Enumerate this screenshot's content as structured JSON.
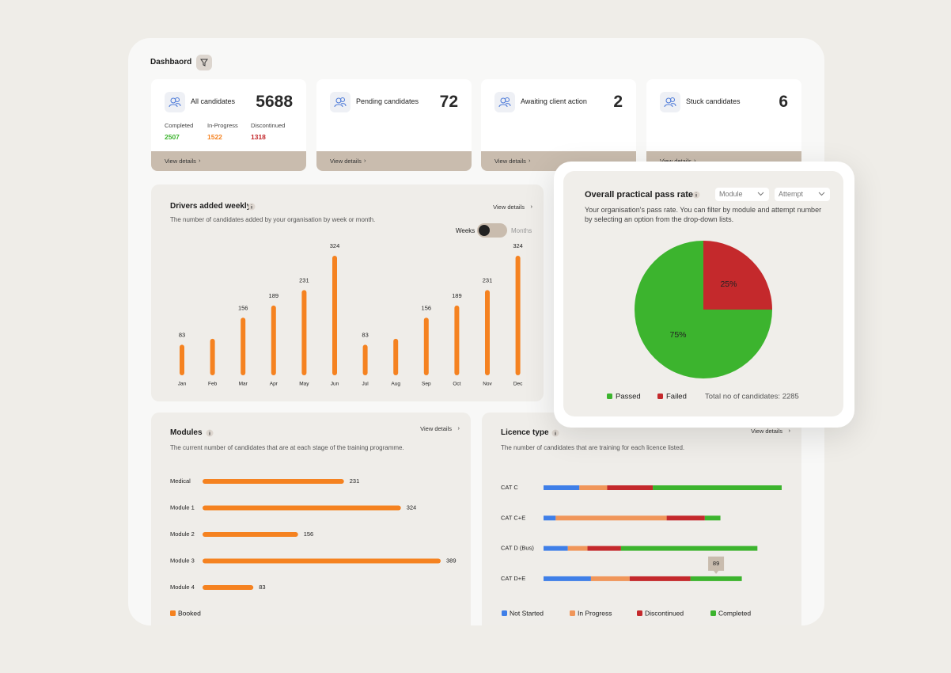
{
  "header": {
    "title": "Dashbaord"
  },
  "stat_cards": [
    {
      "label": "All candidates",
      "value": 5688,
      "link": "View details",
      "breakdown": [
        {
          "label": "Completed",
          "value": 2507,
          "color": "#3cb42e"
        },
        {
          "label": "In-Progress",
          "value": 1522,
          "color": "#f58220"
        },
        {
          "label": "Discontinued",
          "value": 1318,
          "color": "#c4292c"
        }
      ]
    },
    {
      "label": "Pending candidates",
      "value": 72,
      "link": "View details"
    },
    {
      "label": "Awaiting client action",
      "value": 2,
      "link": "View details"
    },
    {
      "label": "Stuck candidates",
      "value": 6,
      "link": "View details"
    }
  ],
  "chart_data": [
    {
      "type": "bar",
      "title": "Drivers added weekly",
      "subtitle": "The number of candidates added by your organisation by week or month.",
      "link": "View details",
      "toggle_options": [
        "Weeks",
        "Months"
      ],
      "categories": [
        "Jan",
        "Feb",
        "Mar",
        "Apr",
        "May",
        "Jun",
        "Jul",
        "Aug",
        "Sep",
        "Oct",
        "Nov",
        "Dec"
      ],
      "values": [
        83,
        99,
        156,
        189,
        231,
        324,
        83,
        99,
        156,
        189,
        231,
        324
      ],
      "value_labels": [
        "83",
        null,
        "156",
        "189",
        "231",
        "324",
        "83",
        null,
        "156",
        "189",
        "231",
        "324"
      ],
      "color": "#f58220"
    },
    {
      "type": "pie",
      "title": "Overall practical pass rate",
      "subtitle": "Your organisation's pass rate. You can filter by module and attempt number by selecting an option from the drop-down lists.",
      "filters": [
        "Module",
        "Attempt"
      ],
      "categories": [
        "Passed",
        "Failed"
      ],
      "values": [
        75,
        25
      ],
      "value_labels": [
        "75%",
        "25%"
      ],
      "colors": [
        "#3cb42e",
        "#c4292c"
      ],
      "total_label": "Total no of candidates: 2285"
    },
    {
      "type": "hbar",
      "title": "Modules",
      "subtitle": "The current number of candidates that are at each stage of the training programme.",
      "link": "View details",
      "categories": [
        "Medical",
        "Module 1",
        "Module 2",
        "Module 3",
        "Module 4"
      ],
      "series": [
        {
          "name": "Booked",
          "color": "#f58220",
          "values": [
            231,
            324,
            156,
            389,
            83
          ]
        }
      ]
    },
    {
      "type": "stacked-hbar",
      "title": "Licence type",
      "subtitle": "The number of candidates that are training for each licence listed.",
      "link": "View details",
      "categories": [
        "CAT C",
        "CAT C+E",
        "CAT D (Bus)",
        "CAT D+E"
      ],
      "series": [
        {
          "name": "Not Started",
          "color": "#3f7fe8",
          "values": [
            62,
            21,
            42,
            82
          ]
        },
        {
          "name": "In Progress",
          "color": "#f0965a",
          "values": [
            48,
            192,
            34,
            67
          ]
        },
        {
          "name": "Discontinued",
          "color": "#c4292c",
          "values": [
            79,
            66,
            58,
            105
          ]
        },
        {
          "name": "Completed",
          "color": "#3cb42e",
          "values": [
            223,
            27,
            236,
            89
          ],
          "value_labels": [
            null,
            null,
            null,
            "89"
          ]
        }
      ]
    }
  ]
}
